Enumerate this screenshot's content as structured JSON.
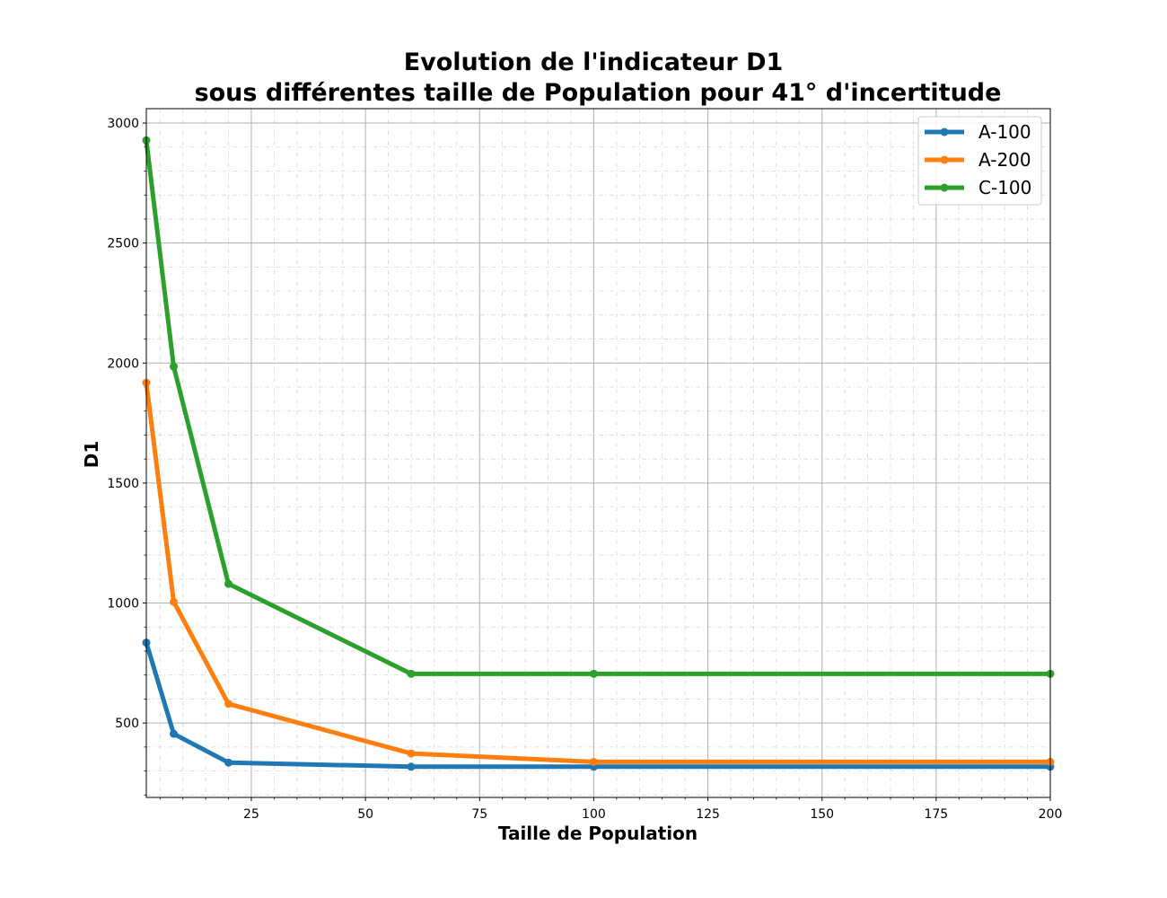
{
  "chart_data": {
    "type": "line",
    "title_line1": "Evolution de l'indicateur  D1",
    "title_line2": "sous différentes taille de Population pour 41° d'incertitude",
    "xlabel": "Taille de Population",
    "ylabel": "D1",
    "xlim": [
      2,
      200
    ],
    "ylim": [
      190,
      3060
    ],
    "xticks": [
      25,
      50,
      75,
      100,
      125,
      150,
      175,
      200
    ],
    "yticks": [
      500,
      1000,
      1500,
      2000,
      2500,
      3000
    ],
    "x_minor_step": 5,
    "y_minor_step": 100,
    "grid": true,
    "legend_position": "top-right",
    "series": [
      {
        "name": "A-100",
        "color": "#1f77b4",
        "x": [
          2,
          8,
          20,
          60,
          100,
          200
        ],
        "y": [
          835,
          455,
          335,
          318,
          318,
          318
        ]
      },
      {
        "name": "A-200",
        "color": "#ff7f0e",
        "x": [
          2,
          8,
          20,
          60,
          100,
          200
        ],
        "y": [
          1918,
          1005,
          580,
          373,
          338,
          338
        ]
      },
      {
        "name": "C-100",
        "color": "#2ca02c",
        "x": [
          2,
          8,
          20,
          60,
          100,
          200
        ],
        "y": [
          2928,
          1985,
          1080,
          705,
          705,
          705
        ]
      }
    ]
  }
}
